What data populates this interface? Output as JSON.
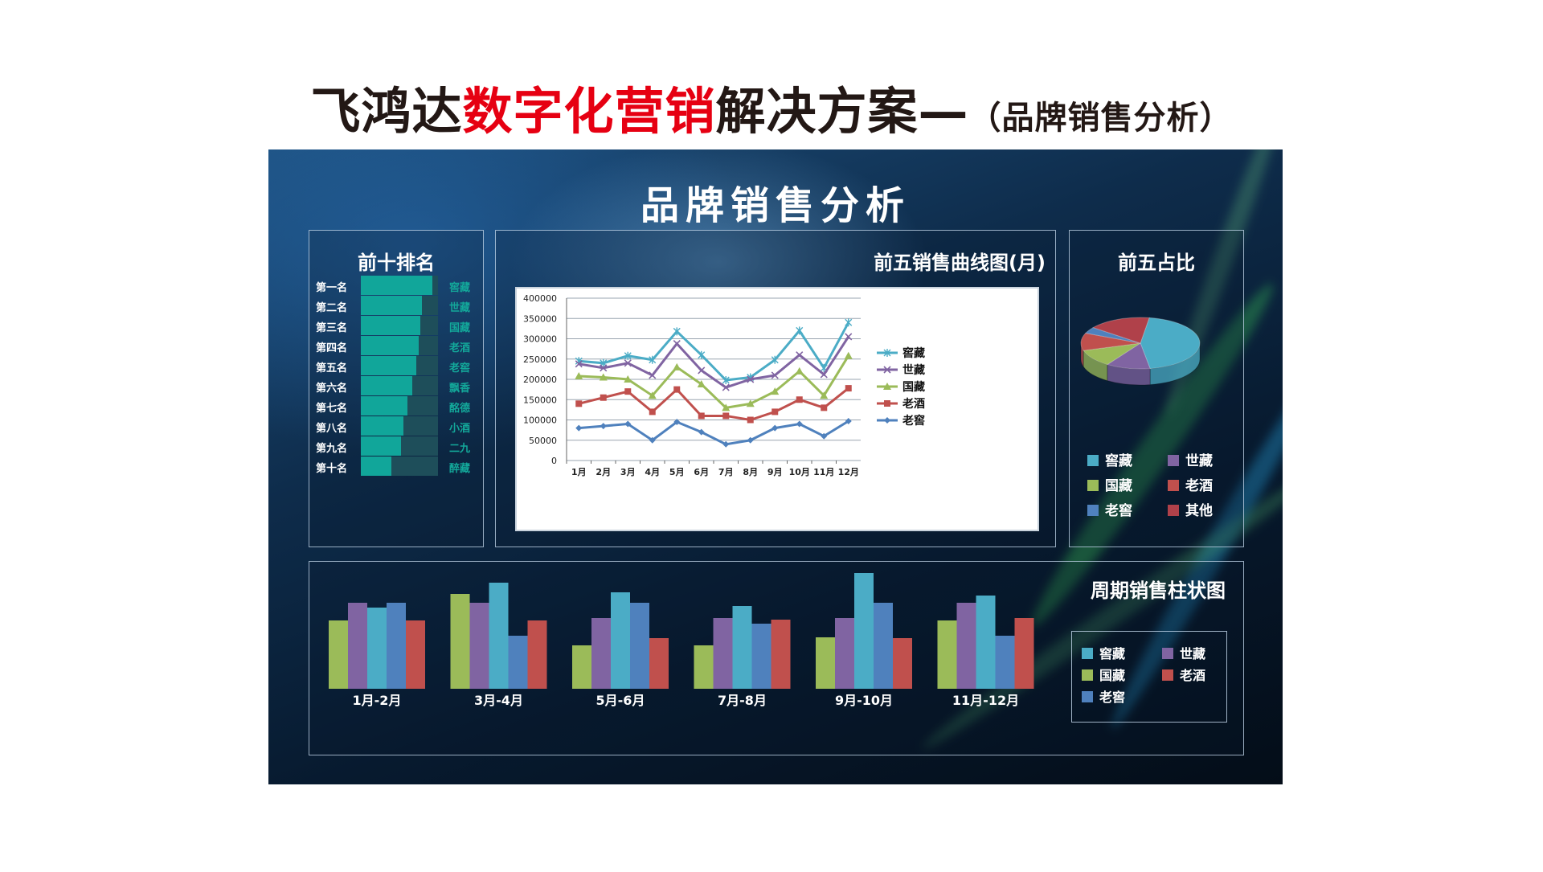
{
  "page": {
    "title_black": "飞鸿达",
    "title_red": "数字化营销",
    "title_rest": "解决方案—",
    "title_sub": "（品牌销售分析）"
  },
  "dashboard": {
    "title": "品牌销售分析",
    "rank_panel_title": "前十排名",
    "line_panel_title": "前五销售曲线图(月)",
    "pie_panel_title": "前五占比",
    "bar_panel_title": "周期销售柱状图"
  },
  "colors": {
    "窖藏": "#4bacc6",
    "世藏": "#8064a2",
    "国藏": "#9bbb59",
    "老酒": "#c0504d",
    "老窖": "#4f81bd",
    "其他": "#b0414a",
    "bar_teal": "#11a69a",
    "bar_track": "#1e4e5a"
  },
  "chart_data": [
    {
      "type": "bar",
      "orientation": "horizontal",
      "title": "前十排名",
      "categories": [
        "第一名",
        "第二名",
        "第三名",
        "第四名",
        "第五名",
        "第六名",
        "第七名",
        "第八名",
        "第九名",
        "第十名"
      ],
      "names": [
        "窖藏",
        "世藏",
        "国藏",
        "老酒",
        "老窖",
        "飘香",
        "酩德",
        "小酒",
        "二九",
        "醉藏"
      ],
      "values": [
        0.93,
        0.79,
        0.77,
        0.75,
        0.72,
        0.67,
        0.6,
        0.55,
        0.52,
        0.4
      ]
    },
    {
      "type": "line",
      "title": "前五销售曲线图(月)",
      "categories": [
        "1月",
        "2月",
        "3月",
        "4月",
        "5月",
        "6月",
        "7月",
        "8月",
        "9月",
        "10月",
        "11月",
        "12月"
      ],
      "ylim": [
        0,
        400000
      ],
      "yticks": [
        0,
        50000,
        100000,
        150000,
        200000,
        250000,
        300000,
        350000,
        400000
      ],
      "grid": true,
      "legend": "right",
      "series": [
        {
          "name": "窖藏",
          "marker": "star",
          "values": [
            245000,
            240000,
            258000,
            248000,
            318000,
            260000,
            198000,
            205000,
            248000,
            320000,
            228000,
            340000
          ]
        },
        {
          "name": "世藏",
          "marker": "x",
          "values": [
            238000,
            228000,
            240000,
            210000,
            288000,
            222000,
            180000,
            200000,
            210000,
            260000,
            212000,
            305000
          ]
        },
        {
          "name": "国藏",
          "marker": "triangle",
          "values": [
            208000,
            205000,
            200000,
            160000,
            230000,
            188000,
            130000,
            140000,
            170000,
            220000,
            160000,
            258000
          ]
        },
        {
          "name": "老酒",
          "marker": "square",
          "values": [
            140000,
            155000,
            170000,
            120000,
            175000,
            110000,
            110000,
            100000,
            120000,
            150000,
            130000,
            178000
          ]
        },
        {
          "name": "老窖",
          "marker": "diamond",
          "values": [
            80000,
            85000,
            90000,
            50000,
            95000,
            70000,
            40000,
            50000,
            80000,
            90000,
            60000,
            97000
          ]
        }
      ]
    },
    {
      "type": "pie",
      "title": "前五占比",
      "legend": "bottom",
      "labels": [
        "窖藏",
        "世藏",
        "国藏",
        "老酒",
        "老窖",
        "其他"
      ],
      "values": [
        45,
        12,
        11,
        11,
        4,
        17
      ]
    },
    {
      "type": "bar",
      "title": "周期销售柱状图",
      "categories": [
        "1月-2月",
        "3月-4月",
        "5月-6月",
        "7月-8月",
        "9月-10月",
        "11月-12月"
      ],
      "legend": "right",
      "series": [
        {
          "name": "国藏",
          "values": [
            85,
            118,
            54,
            54,
            64,
            85
          ]
        },
        {
          "name": "世藏",
          "values": [
            107,
            107,
            88,
            88,
            88,
            107
          ]
        },
        {
          "name": "窖藏",
          "values": [
            101,
            132,
            120,
            103,
            144,
            116
          ]
        },
        {
          "name": "老窖",
          "values": [
            107,
            66,
            107,
            81,
            107,
            66
          ]
        },
        {
          "name": "老酒",
          "values": [
            85,
            85,
            63,
            86,
            63,
            88
          ]
        }
      ]
    }
  ]
}
